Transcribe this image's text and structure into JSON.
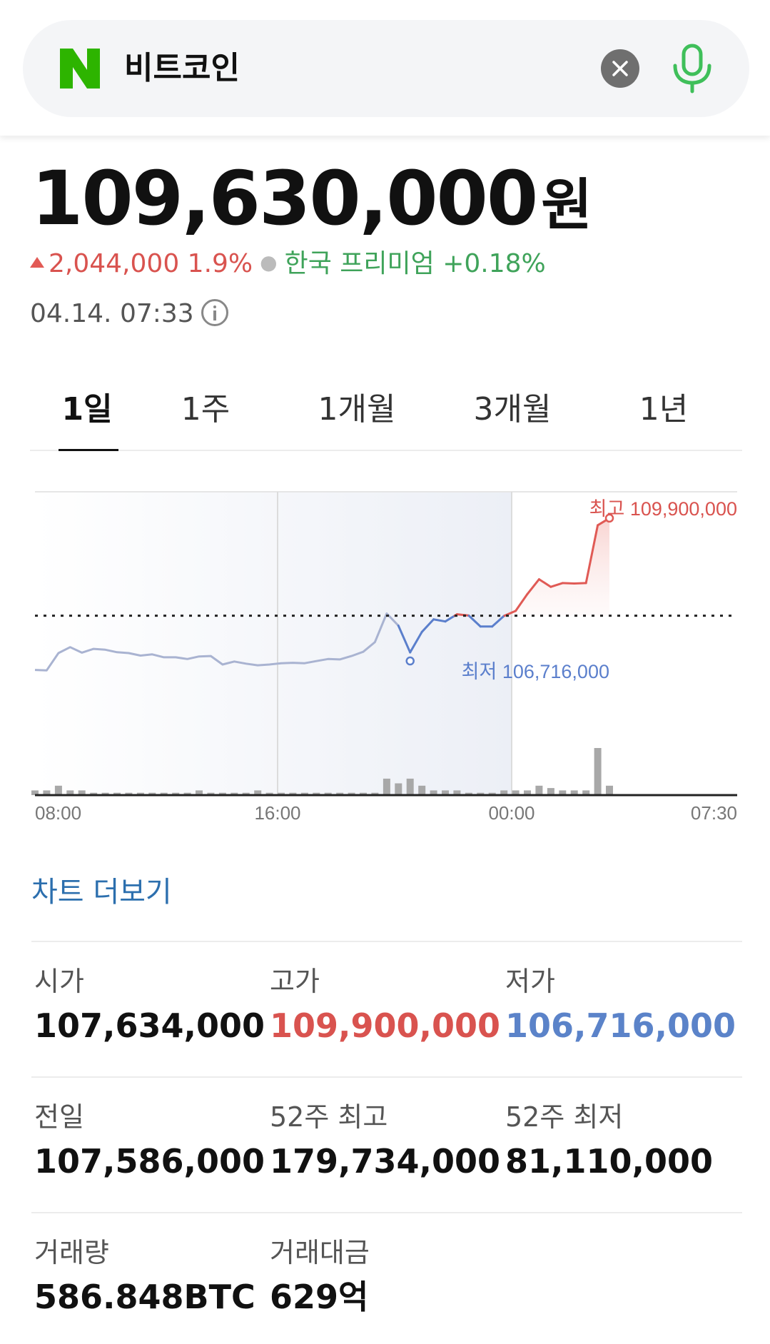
{
  "search": {
    "query": "비트코인",
    "logo": "N"
  },
  "price": {
    "value": "109,630,000",
    "unit": "원"
  },
  "change": {
    "amount": "2,044,000",
    "percent": "1.9%",
    "premium_label": "한국 프리미엄",
    "premium_value": "+0.18%"
  },
  "timestamp": "04.14. 07:33",
  "tabs": [
    {
      "label": "1일",
      "active": true
    },
    {
      "label": "1주",
      "active": false
    },
    {
      "label": "1개월",
      "active": false
    },
    {
      "label": "3개월",
      "active": false
    },
    {
      "label": "1년",
      "active": false
    }
  ],
  "chart_data": {
    "type": "line",
    "x_ticks": [
      "08:00",
      "16:00",
      "00:00",
      "07:30"
    ],
    "high_label": "최고 109,900,000",
    "low_label": "최저 106,716,000",
    "reference_value": 107586000,
    "ylim": [
      105600000,
      110000000
    ],
    "high_value": 109900000,
    "low_value": 106716000,
    "price_series": [
      106300000,
      106290000,
      106700000,
      106840000,
      106710000,
      106800000,
      106780000,
      106720000,
      106700000,
      106640000,
      106670000,
      106600000,
      106600000,
      106560000,
      106620000,
      106630000,
      106430000,
      106500000,
      106450000,
      106410000,
      106430000,
      106460000,
      106470000,
      106460000,
      106510000,
      106560000,
      106550000,
      106630000,
      106730000,
      106960000,
      107640000,
      107350000,
      106716000,
      107200000,
      107500000,
      107450000,
      107620000,
      107590000,
      107330000,
      107330000,
      107580000,
      107700000,
      108100000,
      108450000,
      108270000,
      108360000,
      108350000,
      108360000,
      109730000,
      109900000
    ],
    "volume_series": [
      2,
      2,
      4,
      2,
      2,
      1,
      1,
      1,
      1,
      1,
      1,
      1,
      1,
      1,
      2,
      1,
      1,
      1,
      1,
      2,
      1,
      1,
      1,
      1,
      1,
      1,
      1,
      1,
      1,
      1,
      7,
      5,
      7,
      4,
      2,
      2,
      2,
      1,
      1,
      1,
      2,
      2,
      2,
      4,
      3,
      2,
      2,
      2,
      20,
      4
    ],
    "colors": {
      "past": "#a9b3d1",
      "down": "#5b7fcc",
      "up": "#e05a55",
      "volume": "#a8a8a8"
    }
  },
  "more_chart": "차트 더보기",
  "stats": [
    [
      {
        "label": "시가",
        "value": "107,634,000",
        "color": ""
      },
      {
        "label": "고가",
        "value": "109,900,000",
        "color": "red"
      },
      {
        "label": "저가",
        "value": "106,716,000",
        "color": "blue"
      }
    ],
    [
      {
        "label": "전일",
        "value": "107,586,000",
        "color": ""
      },
      {
        "label": "52주 최고",
        "value": "179,734,000",
        "color": ""
      },
      {
        "label": "52주 최저",
        "value": "81,110,000",
        "color": ""
      }
    ],
    [
      {
        "label": "거래량",
        "value": "586.848BTC",
        "color": ""
      },
      {
        "label": "거래대금",
        "value": "629억",
        "color": ""
      }
    ]
  ]
}
